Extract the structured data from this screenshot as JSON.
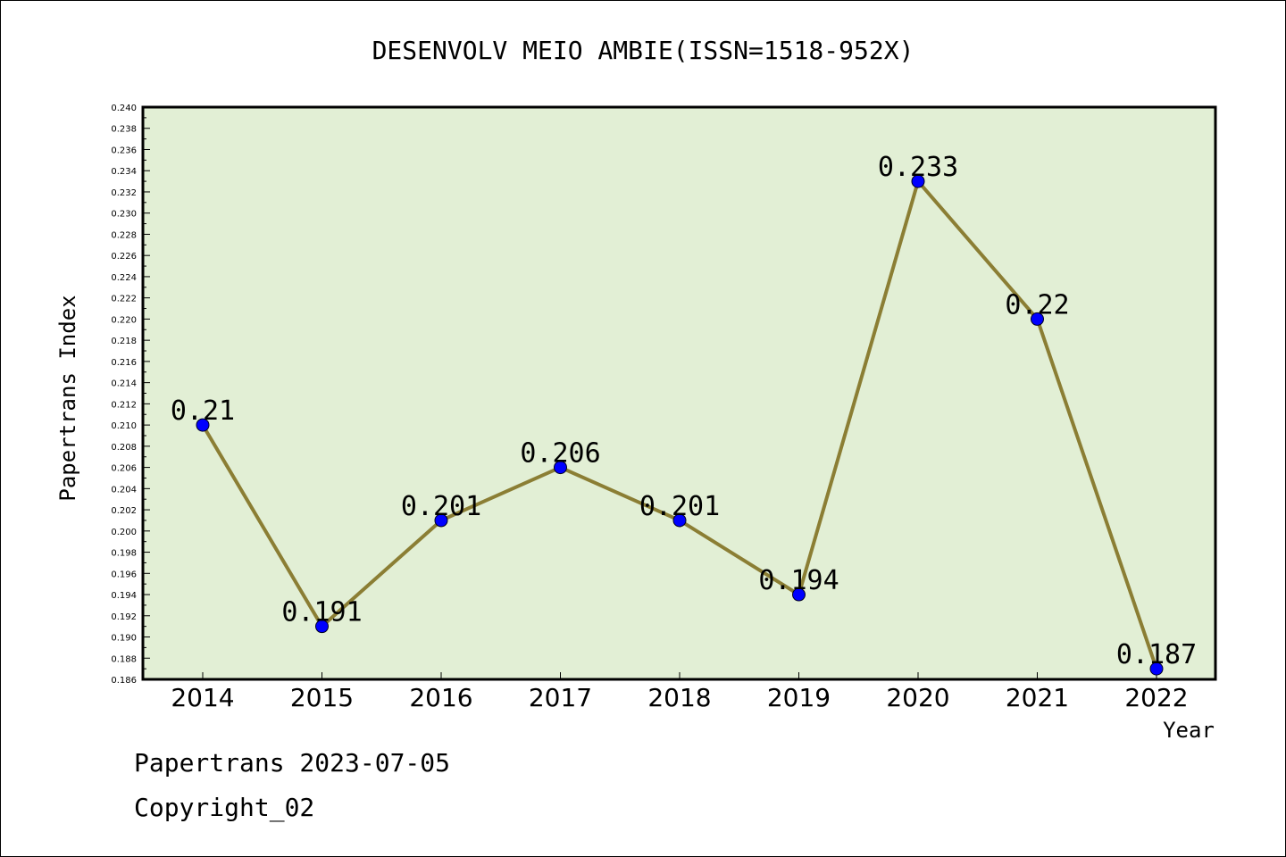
{
  "chart_data": {
    "type": "line",
    "title": "DESENVOLV MEIO AMBIE(ISSN=1518-952X)",
    "xlabel": "Year",
    "ylabel": "Papertrans Index",
    "categories": [
      "2014",
      "2015",
      "2016",
      "2017",
      "2018",
      "2019",
      "2020",
      "2021",
      "2022"
    ],
    "values": [
      0.21,
      0.191,
      0.201,
      0.206,
      0.201,
      0.194,
      0.233,
      0.22,
      0.187
    ],
    "data_labels": [
      "0.21",
      "0.191",
      "0.201",
      "0.206",
      "0.201",
      "0.194",
      "0.233",
      "0.22",
      "0.187"
    ],
    "ylim": [
      0.186,
      0.24
    ],
    "ytick_step": 0.002,
    "ytick_decimals": 3,
    "grid": false,
    "colors": {
      "plot_background": "#e2efd5",
      "line": "#8b7e34",
      "marker": "#0000ff"
    }
  },
  "footer": {
    "line1": "Papertrans 2023-07-05",
    "line2": "Copyright_02"
  }
}
